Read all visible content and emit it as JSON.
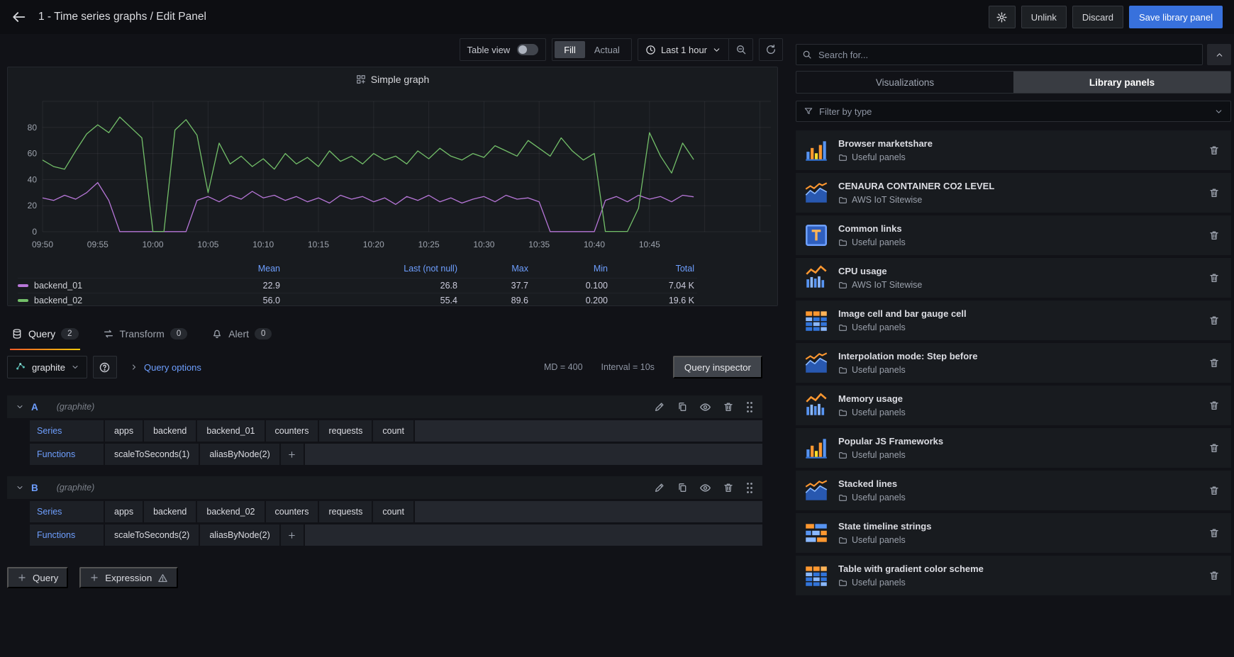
{
  "header": {
    "title": "1 - Time series graphs / Edit Panel",
    "unlink": "Unlink",
    "discard": "Discard",
    "save": "Save library panel"
  },
  "toolbar": {
    "table_view": "Table view",
    "fill": "Fill",
    "actual": "Actual",
    "time_range": "Last 1 hour"
  },
  "panel": {
    "title": "Simple graph"
  },
  "chart_data": {
    "type": "line",
    "title": "Simple graph",
    "x_ticks": [
      "09:50",
      "09:55",
      "10:00",
      "10:05",
      "10:10",
      "10:15",
      "10:20",
      "10:25",
      "10:30",
      "10:35",
      "10:40",
      "10:45"
    ],
    "x_tick_interval_minutes": 5,
    "x_range_minutes": [
      0,
      66
    ],
    "ylim": [
      0,
      100
    ],
    "y_ticks": [
      0,
      20,
      40,
      60,
      80
    ],
    "grid": true,
    "legend_position": "bottom",
    "stats_columns": [
      "Mean",
      "Last (not null)",
      "Max",
      "Min",
      "Total"
    ],
    "series": [
      {
        "name": "backend_01",
        "color": "#b877d9",
        "values": [
          26,
          24,
          28,
          25,
          30,
          37.7,
          24,
          0.1,
          0.1,
          0.1,
          0.1,
          0.1,
          0.1,
          0.1,
          24,
          27,
          23,
          28,
          25,
          31,
          26,
          28,
          24,
          27,
          23,
          26,
          22,
          28,
          25,
          27,
          23,
          26,
          21,
          27,
          24,
          28,
          23,
          26,
          22,
          25,
          27,
          23,
          28,
          25,
          26,
          23,
          0.1,
          0.1,
          0.1,
          0.1,
          0.1,
          24,
          27,
          23,
          28,
          25,
          27,
          23,
          28,
          26.8
        ],
        "stats": [
          "22.9",
          "26.8",
          "37.7",
          "0.100",
          "7.04 K"
        ]
      },
      {
        "name": "backend_02",
        "color": "#73bf69",
        "values": [
          55,
          50,
          48,
          62,
          75,
          82,
          76,
          88,
          80,
          72,
          0.2,
          0.2,
          78,
          86,
          74,
          30,
          68,
          52,
          58,
          50,
          56,
          48,
          60,
          52,
          57,
          50,
          62,
          54,
          58,
          52,
          60,
          55,
          58,
          52,
          62,
          56,
          64,
          58,
          55,
          60,
          57,
          66,
          62,
          58,
          70,
          64,
          58,
          72,
          62,
          55,
          60,
          0.2,
          0.2,
          0.2,
          18,
          76,
          58,
          45,
          68,
          55.4
        ],
        "stats": [
          "56.0",
          "55.4",
          "89.6",
          "0.200",
          "19.6 K"
        ]
      }
    ]
  },
  "tabs": {
    "query": {
      "label": "Query",
      "count": "2"
    },
    "transform": {
      "label": "Transform",
      "count": "0"
    },
    "alert": {
      "label": "Alert",
      "count": "0"
    }
  },
  "query_toolbar": {
    "datasource": "graphite",
    "options": "Query options",
    "md": "MD = 400",
    "interval": "Interval = 10s",
    "inspector": "Query inspector"
  },
  "queries": [
    {
      "ref": "A",
      "datasource": "(graphite)",
      "series_label": "Series",
      "series": [
        "apps",
        "backend",
        "backend_01",
        "counters",
        "requests",
        "count"
      ],
      "functions_label": "Functions",
      "functions": [
        "scaleToSeconds(1)",
        "aliasByNode(2)"
      ]
    },
    {
      "ref": "B",
      "datasource": "(graphite)",
      "series_label": "Series",
      "series": [
        "apps",
        "backend",
        "backend_02",
        "counters",
        "requests",
        "count"
      ],
      "functions_label": "Functions",
      "functions": [
        "scaleToSeconds(2)",
        "aliasByNode(2)"
      ]
    }
  ],
  "footer": {
    "add_query": "Query",
    "add_expression": "Expression"
  },
  "sidebar": {
    "search_placeholder": "Search for...",
    "tab_visualizations": "Visualizations",
    "tab_library_panels": "Library panels",
    "filter_placeholder": "Filter by type",
    "items": [
      {
        "name": "Browser marketshare",
        "folder": "Useful panels",
        "icon": "barchart"
      },
      {
        "name": "CENAURA CONTAINER CO2 LEVEL",
        "folder": "AWS IoT Sitewise",
        "icon": "timeseries"
      },
      {
        "name": "Common links",
        "folder": "Useful panels",
        "icon": "text"
      },
      {
        "name": "CPU usage",
        "folder": "AWS IoT Sitewise",
        "icon": "graph"
      },
      {
        "name": "Image cell and bar gauge cell",
        "folder": "Useful panels",
        "icon": "table"
      },
      {
        "name": "Interpolation mode: Step before",
        "folder": "Useful panels",
        "icon": "timeseries"
      },
      {
        "name": "Memory usage",
        "folder": "Useful panels",
        "icon": "graph"
      },
      {
        "name": "Popular JS Frameworks",
        "folder": "Useful panels",
        "icon": "barchart"
      },
      {
        "name": "Stacked lines",
        "folder": "Useful panels",
        "icon": "timeseries"
      },
      {
        "name": "State timeline strings",
        "folder": "Useful panels",
        "icon": "timeline"
      },
      {
        "name": "Table with gradient color scheme",
        "folder": "Useful panels",
        "icon": "table"
      }
    ]
  },
  "colors": {
    "accent_blue": "#3871dc",
    "link_blue": "#6e9fff",
    "active_tab_orange": "#ff780a",
    "series_purple": "#b877d9",
    "series_green": "#73bf69",
    "panel_bg": "#181b1f",
    "page_bg": "#111217"
  }
}
